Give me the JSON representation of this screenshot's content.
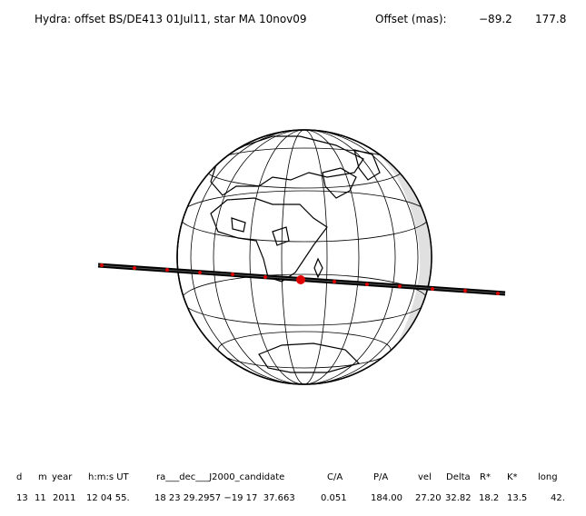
{
  "header": {
    "title": "Hydra: offset BS/DE413 01Jul11, star MA 10nov09",
    "offset_label": "Offset (mas):",
    "offset_x": "−89.2",
    "offset_y": "177.8"
  },
  "table": {
    "header": [
      "d",
      "m",
      "year",
      "h:m:s UT",
      "ra___dec___J2000_candidate",
      "C/A",
      "P/A",
      "vel",
      "Delta",
      "R*",
      "K*",
      "long"
    ],
    "row": [
      "13",
      "11",
      "2011",
      "12 04 55.",
      "18 23 29.2957 −19 17  37.663",
      "0.051",
      "184.00",
      "27.20",
      "32.82",
      "18.2",
      "13.5",
      "42."
    ]
  }
}
